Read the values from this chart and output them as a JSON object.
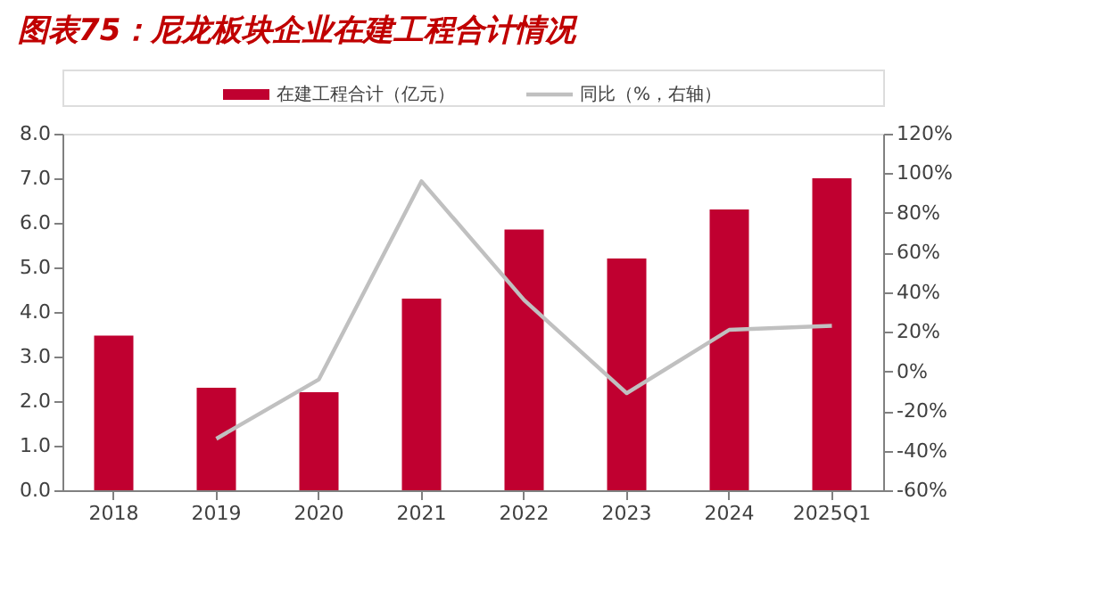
{
  "chart_data": {
    "type": "bar",
    "title": "图表75：尼龙板块企业在建工程合计情况",
    "categories": [
      "2018",
      "2019",
      "2020",
      "2021",
      "2022",
      "2023",
      "2024",
      "2025Q1"
    ],
    "series": [
      {
        "name": "在建工程合计（亿元）",
        "color": "#c00030",
        "values": [
          3.47,
          2.3,
          2.2,
          4.3,
          5.85,
          5.2,
          6.3,
          7.0
        ]
      },
      {
        "name": "同比（%，右轴）",
        "type": "line",
        "axis": "y2",
        "color": "#c0c0c0",
        "values": [
          null,
          -34,
          -4,
          96,
          36,
          -11,
          21,
          23
        ]
      }
    ],
    "ylim": [
      0,
      8
    ],
    "yticks": [
      {
        "value": 0,
        "label": "0.0"
      },
      {
        "value": 1,
        "label": "1.0"
      },
      {
        "value": 2,
        "label": "2.0"
      },
      {
        "value": 3,
        "label": "3.0"
      },
      {
        "value": 4,
        "label": "4.0"
      },
      {
        "value": 5,
        "label": "5.0"
      },
      {
        "value": 6,
        "label": "6.0"
      },
      {
        "value": 7,
        "label": "7.0"
      },
      {
        "value": 8,
        "label": "8.0"
      }
    ],
    "y2lim": [
      -60,
      120
    ],
    "y2ticks": [
      {
        "value": -60,
        "label": "-60%"
      },
      {
        "value": -40,
        "label": "-40%"
      },
      {
        "value": -20,
        "label": "-20%"
      },
      {
        "value": 0,
        "label": "0%"
      },
      {
        "value": 20,
        "label": "20%"
      },
      {
        "value": 40,
        "label": "40%"
      },
      {
        "value": 60,
        "label": "60%"
      },
      {
        "value": 80,
        "label": "80%"
      },
      {
        "value": 100,
        "label": "100%"
      },
      {
        "value": 120,
        "label": "120%"
      }
    ],
    "grid": false,
    "legend": "top",
    "marker": "none",
    "line_style": "solid"
  }
}
